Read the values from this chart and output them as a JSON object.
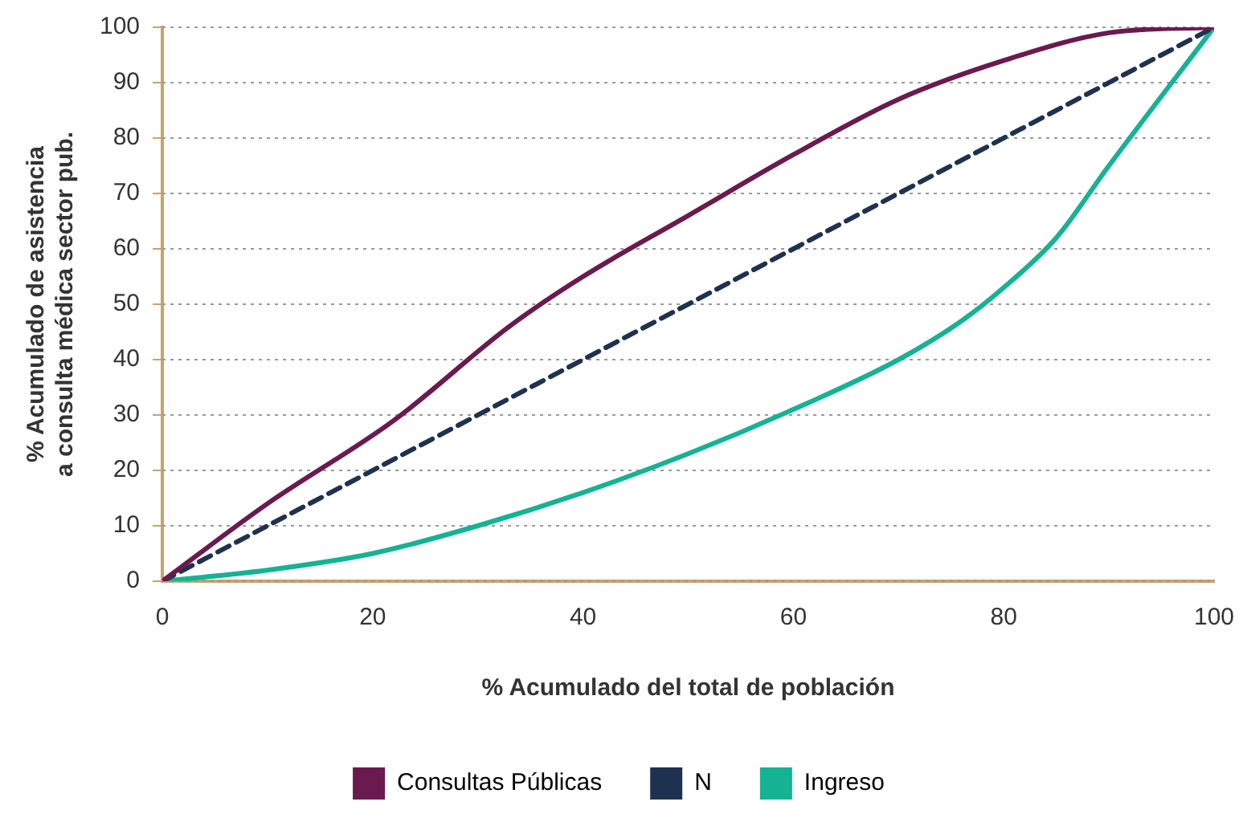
{
  "chart_data": {
    "type": "line",
    "xlabel": "% Acumulado del total de población",
    "ylabel": "% Acumulado de asistencia\na consulta médica sector pub.",
    "xlim": [
      0,
      100
    ],
    "xticks": [
      0,
      20,
      40,
      60,
      80,
      100
    ],
    "ylim": [
      0,
      100
    ],
    "yticks": [
      0,
      10,
      20,
      30,
      40,
      50,
      60,
      70,
      80,
      90,
      100
    ],
    "grid": "y",
    "legend": "bottom",
    "marker": "none",
    "series": [
      {
        "name": "Consultas Públicas",
        "color": "#6b1a4f",
        "x": [
          0,
          10,
          22,
          33,
          40,
          50,
          60,
          70,
          80,
          90,
          100
        ],
        "values": [
          0,
          14,
          29,
          46,
          55,
          66,
          77,
          87,
          94,
          99,
          100
        ]
      },
      {
        "name": "N",
        "color": "#1f3150",
        "line_style": "dashed",
        "x": [
          0,
          100
        ],
        "values": [
          0,
          100
        ]
      },
      {
        "name": "Ingreso",
        "color": "#13b394",
        "x": [
          0,
          10,
          20,
          30,
          40,
          50,
          60,
          70,
          76,
          80,
          85,
          90,
          100
        ],
        "values": [
          0,
          2,
          5,
          10,
          16,
          23,
          31,
          40,
          47,
          53,
          62,
          75,
          100
        ]
      }
    ]
  }
}
